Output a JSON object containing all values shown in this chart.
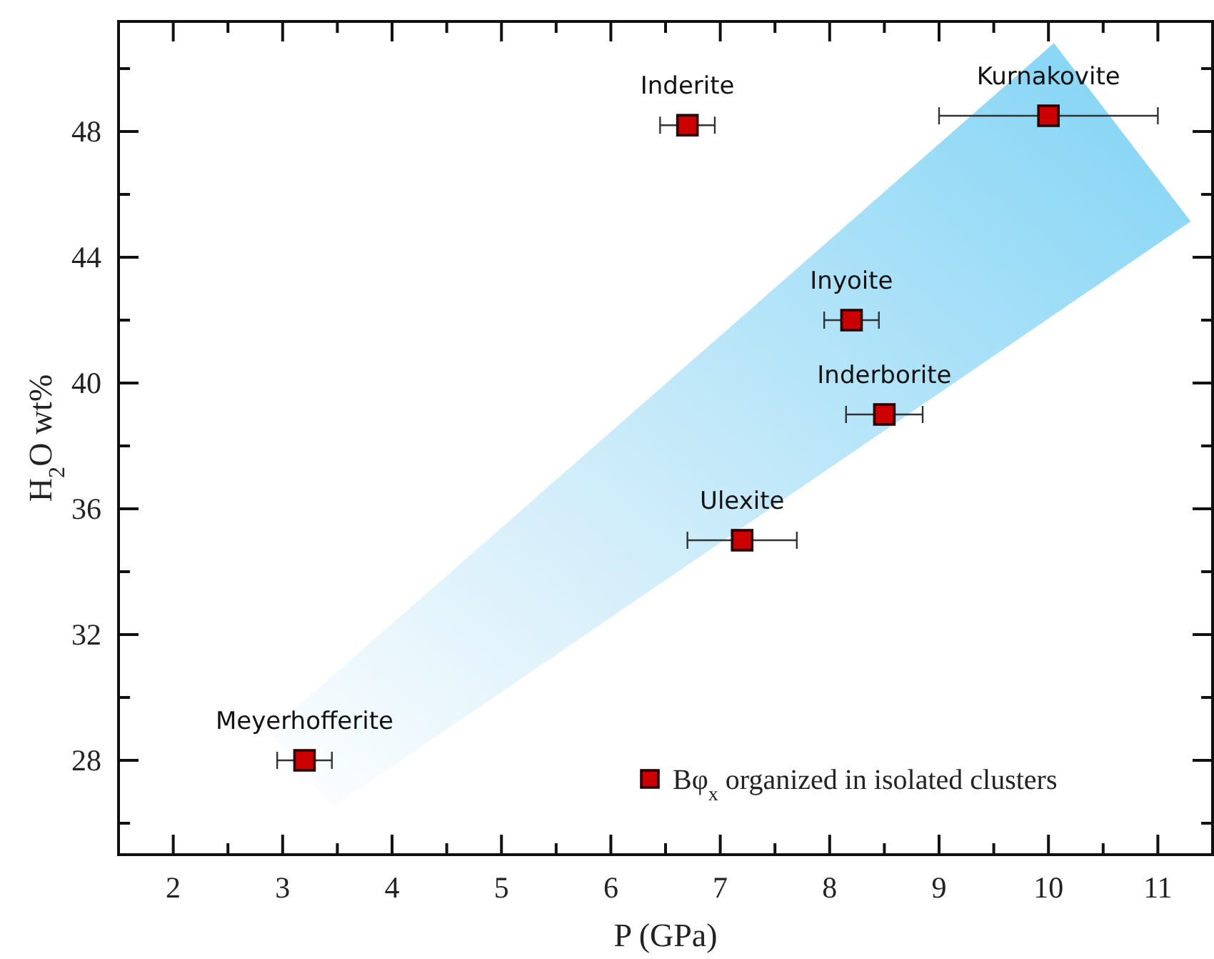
{
  "chart_data": {
    "type": "scatter",
    "xlabel": "P  (GPa)",
    "ylabel": "H$_{2}$O wt%",
    "xlim": [
      1.5,
      11.5
    ],
    "xticks": [
      2,
      {
        "value": 2.5,
        "label": null
      },
      3,
      {
        "value": 3.5,
        "label": null
      },
      4,
      {
        "value": 4.5,
        "label": null
      },
      5,
      {
        "value": 5.5,
        "label": null
      },
      6,
      {
        "value": 6.5,
        "label": null
      },
      7,
      {
        "value": 7.5,
        "label": null
      },
      8,
      {
        "value": 8.5,
        "label": null
      },
      9,
      {
        "value": 9.5,
        "label": null
      },
      10,
      {
        "value": 10.5,
        "label": null
      },
      11
    ],
    "ylim": [
      25,
      51.5
    ],
    "yticks": [
      {
        "value": 26,
        "label": null
      },
      28,
      {
        "value": 30,
        "label": null
      },
      32,
      {
        "value": 34,
        "label": null
      },
      36,
      {
        "value": 38,
        "label": null
      },
      40,
      {
        "value": 42,
        "label": null
      },
      44,
      {
        "value": 46,
        "label": null
      },
      48,
      {
        "value": 50,
        "label": null
      }
    ],
    "series": [
      {
        "name": "Bφ$_{x}$ organized in isolated clusters",
        "color": "#cc0000",
        "x": [
          3.2,
          7.2,
          8.5,
          8.2,
          6.7,
          10.0
        ],
        "values": [
          28,
          35,
          39,
          42,
          48.2,
          48.5
        ],
        "xerrors": [
          0.25,
          0.5,
          0.35,
          0.25,
          0.25,
          1.0
        ]
      }
    ],
    "annotations": [
      {
        "text": "Meyerhofferite",
        "x": 3.2,
        "y": 28
      },
      {
        "text": "Ulexite",
        "x": 7.2,
        "y": 35
      },
      {
        "text": "Inderborite",
        "x": 8.5,
        "y": 39
      },
      {
        "text": "Inyoite",
        "x": 8.2,
        "y": 42
      },
      {
        "text": "Inderite",
        "x": 6.7,
        "y": 48.2
      },
      {
        "text": "Kurnakovite",
        "x": 10.0,
        "y": 48.5
      }
    ],
    "marker": "square",
    "legend": "bottom right",
    "grid": false
  }
}
